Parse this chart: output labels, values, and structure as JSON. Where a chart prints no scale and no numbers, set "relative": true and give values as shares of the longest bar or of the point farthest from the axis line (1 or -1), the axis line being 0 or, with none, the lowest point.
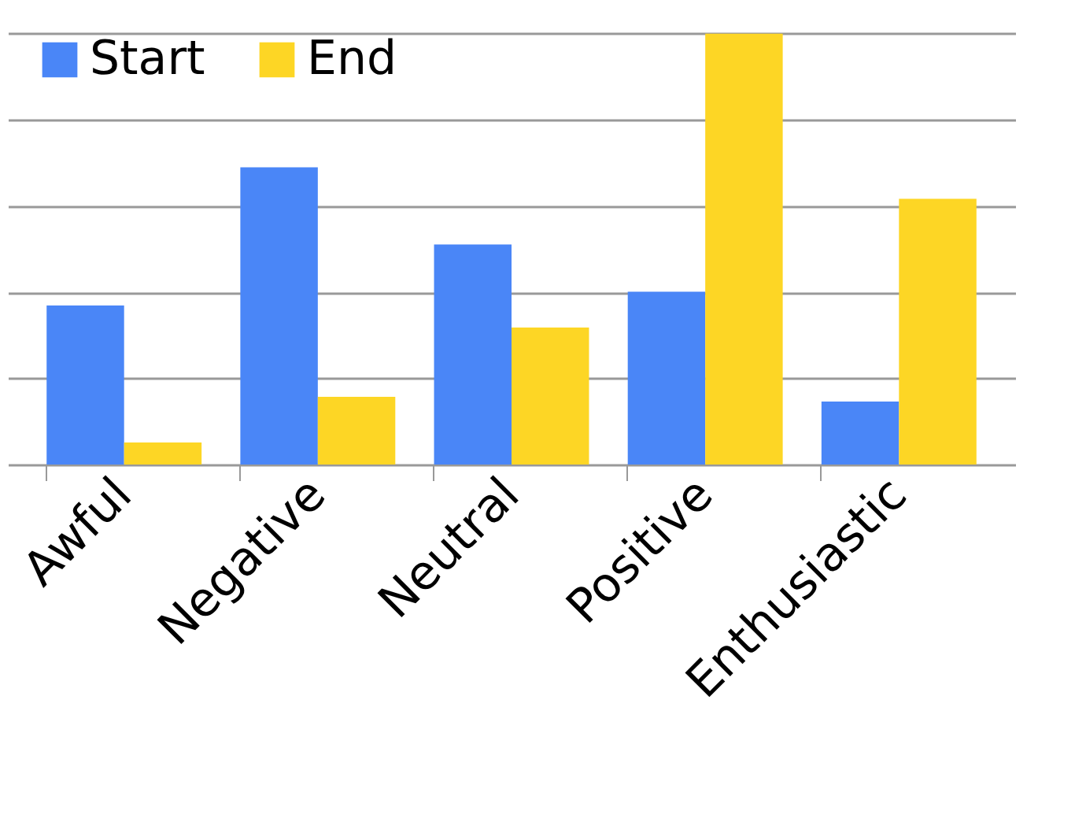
{
  "chart_data": {
    "type": "bar",
    "relative": true,
    "categories": [
      "Awful",
      "Negative",
      "Neutral",
      "Positive",
      "Enthusiastic"
    ],
    "series": [
      {
        "name": "Start",
        "color": "#4a86f7",
        "values": [
          0.369,
          0.69,
          0.511,
          0.401,
          0.146
        ]
      },
      {
        "name": "End",
        "color": "#fdd625",
        "values": [
          0.051,
          0.157,
          0.318,
          1,
          0.617
        ]
      }
    ],
    "grid": "y",
    "legend": "top left"
  }
}
